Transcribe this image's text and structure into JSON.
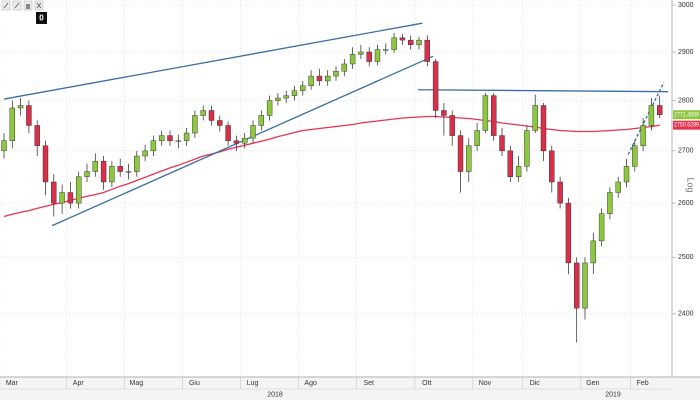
{
  "toolbar": {
    "badge": "0"
  },
  "chart_data": {
    "type": "candlestick",
    "log_scale": true,
    "scale_label": "Log",
    "grid": true,
    "ylim": [
      2293,
      3011
    ],
    "yticks": [
      2400,
      2500,
      2600,
      2700,
      2800,
      2900,
      3000
    ],
    "up_color": "#8dc63f",
    "down_color": "#d6304a",
    "categories": [
      "Mar",
      null,
      null,
      null,
      null,
      null,
      null,
      null,
      "Apr",
      null,
      null,
      null,
      null,
      null,
      null,
      "Mag",
      null,
      null,
      null,
      null,
      null,
      null,
      "Giu",
      null,
      null,
      null,
      null,
      null,
      null,
      "Lug",
      null,
      null,
      null,
      null,
      null,
      null,
      "Ago",
      null,
      null,
      null,
      null,
      null,
      null,
      "Set",
      null,
      null,
      null,
      null,
      null,
      null,
      "Ott",
      null,
      null,
      null,
      null,
      null,
      null,
      "Nov",
      null,
      null,
      null,
      null,
      null,
      "Dic",
      null,
      null,
      null,
      null,
      null,
      null,
      "Gen",
      null,
      null,
      null,
      null,
      null,
      "Feb",
      null,
      null,
      null
    ],
    "years": [
      "2018",
      "2019"
    ],
    "open": [
      2700,
      2720,
      2785,
      2790,
      2750,
      2710,
      2640,
      2600,
      2620,
      2600,
      2650,
      2660,
      2680,
      2640,
      2670,
      2660,
      2660,
      2690,
      2700,
      2720,
      2730,
      2720,
      2720,
      2735,
      2770,
      2780,
      2760,
      2750,
      2720,
      2715,
      2725,
      2750,
      2770,
      2800,
      2805,
      2810,
      2820,
      2830,
      2850,
      2840,
      2850,
      2860,
      2875,
      2895,
      2900,
      2880,
      2905,
      2905,
      2930,
      2925,
      2915,
      2925,
      2880,
      2780,
      2770,
      2730,
      2660,
      2710,
      2740,
      2810,
      2730,
      2700,
      2650,
      2670,
      2740,
      2790,
      2700,
      2640,
      2600,
      2490,
      2410,
      2490,
      2530,
      2580,
      2620,
      2640,
      2670,
      2710,
      2750,
      2790
    ],
    "high": [
      2735,
      2800,
      2805,
      2800,
      2760,
      2720,
      2655,
      2635,
      2640,
      2660,
      2675,
      2695,
      2690,
      2680,
      2685,
      2675,
      2700,
      2712,
      2730,
      2740,
      2740,
      2732,
      2745,
      2780,
      2790,
      2790,
      2770,
      2758,
      2730,
      2735,
      2760,
      2780,
      2810,
      2815,
      2820,
      2830,
      2840,
      2862,
      2865,
      2862,
      2870,
      2885,
      2910,
      2915,
      2910,
      2915,
      2918,
      2940,
      2938,
      2935,
      2932,
      2935,
      2885,
      2795,
      2780,
      2740,
      2725,
      2755,
      2815,
      2815,
      2745,
      2710,
      2690,
      2750,
      2812,
      2795,
      2710,
      2650,
      2610,
      2500,
      2500,
      2545,
      2590,
      2630,
      2650,
      2685,
      2720,
      2765,
      2805,
      2810
    ],
    "low": [
      2685,
      2705,
      2770,
      2735,
      2690,
      2615,
      2575,
      2580,
      2590,
      2590,
      2640,
      2650,
      2625,
      2630,
      2650,
      2645,
      2650,
      2680,
      2690,
      2710,
      2710,
      2705,
      2710,
      2725,
      2760,
      2750,
      2738,
      2710,
      2700,
      2705,
      2715,
      2740,
      2760,
      2790,
      2795,
      2800,
      2810,
      2822,
      2830,
      2830,
      2840,
      2850,
      2865,
      2885,
      2870,
      2872,
      2895,
      2898,
      2915,
      2905,
      2905,
      2870,
      2765,
      2730,
      2710,
      2620,
      2640,
      2700,
      2735,
      2720,
      2690,
      2640,
      2640,
      2660,
      2735,
      2680,
      2620,
      2590,
      2470,
      2351,
      2390,
      2470,
      2520,
      2570,
      2610,
      2630,
      2660,
      2700,
      2740,
      2765
    ],
    "close": [
      2720,
      2785,
      2790,
      2750,
      2710,
      2640,
      2600,
      2620,
      2600,
      2650,
      2660,
      2680,
      2640,
      2670,
      2660,
      2660,
      2690,
      2700,
      2720,
      2730,
      2720,
      2720,
      2735,
      2770,
      2780,
      2760,
      2750,
      2720,
      2715,
      2725,
      2750,
      2770,
      2800,
      2805,
      2810,
      2820,
      2830,
      2850,
      2840,
      2850,
      2860,
      2875,
      2895,
      2900,
      2880,
      2905,
      2905,
      2930,
      2925,
      2915,
      2925,
      2880,
      2780,
      2770,
      2730,
      2660,
      2710,
      2740,
      2810,
      2730,
      2700,
      2650,
      2670,
      2740,
      2790,
      2700,
      2640,
      2600,
      2490,
      2410,
      2490,
      2530,
      2580,
      2620,
      2640,
      2670,
      2710,
      2750,
      2790,
      2771.45
    ],
    "last_close_label": "2771.4500",
    "moving_average": {
      "color": "#e8334f",
      "values": [
        2575,
        2579,
        2583,
        2586,
        2590,
        2594,
        2598,
        2601,
        2605,
        2609,
        2613,
        2616,
        2620,
        2626,
        2632,
        2637,
        2643,
        2649,
        2655,
        2661,
        2667,
        2672,
        2678,
        2684,
        2690,
        2694,
        2698,
        2703,
        2707,
        2711,
        2715,
        2719,
        2723,
        2728,
        2732,
        2736,
        2740,
        2742,
        2744,
        2746,
        2748,
        2750,
        2752,
        2755,
        2757,
        2759,
        2761,
        2763,
        2765,
        2766,
        2767,
        2768,
        2768,
        2767,
        2766,
        2765,
        2764,
        2762,
        2760,
        2758,
        2755,
        2753,
        2751,
        2749,
        2747,
        2744,
        2742,
        2740,
        2739,
        2738,
        2738,
        2738,
        2739,
        2740,
        2741,
        2742,
        2744,
        2746,
        2748,
        2750.6289
      ],
      "last_label": "2750.6289"
    },
    "trendlines": [
      {
        "color": "#3b6ea5",
        "dashed": false,
        "x": [
          0,
          50.4
        ],
        "y": [
          2803,
          2961
        ]
      },
      {
        "color": "#3b6ea5",
        "dashed": false,
        "x": [
          5.8,
          51.7
        ],
        "y": [
          2558,
          2891
        ]
      },
      {
        "color": "#3b6ea5",
        "dashed": false,
        "x": [
          49.9,
          80
        ],
        "y": [
          2822,
          2818
        ]
      },
      {
        "color": "#3b6ea5",
        "dashed": true,
        "x": [
          75.2,
          79.5
        ],
        "y": [
          2693,
          2837
        ]
      }
    ]
  }
}
